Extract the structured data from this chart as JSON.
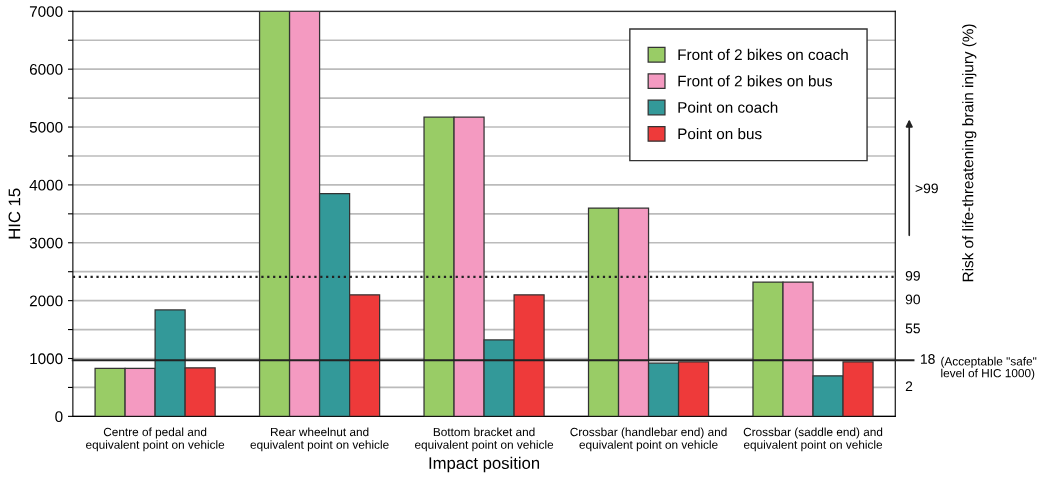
{
  "chart_data": {
    "type": "bar",
    "xlabel": "Impact position",
    "ylabel": "HIC 15",
    "y2label": "Risk of life-threatening brain injury (%)",
    "categories": [
      "Centre of pedal and\nequivalent point on vehicle",
      "Rear wheelnut and\nequivalent point on vehicle",
      "Bottom bracket and\nequivalent point on vehicle",
      "Crossbar (handlebar end) and\nequivalent point on vehicle",
      "Crossbar (saddle end) and\nequivalent point on vehicle"
    ],
    "series": [
      {
        "name": "Front of 2 bikes on coach",
        "color": "#99cc66",
        "values": [
          830,
          7000,
          5170,
          3600,
          2320
        ]
      },
      {
        "name": "Front of 2 bikes on bus",
        "color": "#f49ac1",
        "values": [
          830,
          7000,
          5170,
          3600,
          2320
        ]
      },
      {
        "name": "Point on coach",
        "color": "#339999",
        "values": [
          1840,
          3850,
          1320,
          920,
          700
        ]
      },
      {
        "name": "Point on bus",
        "color": "#ee3a3a",
        "values": [
          840,
          2100,
          2100,
          940,
          940
        ]
      }
    ],
    "ylim": [
      0,
      7000
    ],
    "yticks": [
      0,
      {
        "value": 500,
        "label": null
      },
      1000,
      {
        "value": 1500,
        "label": null
      },
      2000,
      {
        "value": 2500,
        "label": null
      },
      3000,
      {
        "value": 3500,
        "label": null
      },
      4000,
      {
        "value": 4500,
        "label": null
      },
      5000,
      {
        "value": 5500,
        "label": null
      },
      6000,
      {
        "value": 6500,
        "label": null
      },
      7000
    ],
    "ref_lines": [
      {
        "axis": "y",
        "value": 2410,
        "color": "#222222",
        "line_style": "dotted"
      },
      {
        "axis": "y",
        "value": 970,
        "color": "#222222",
        "line_style": "solid"
      }
    ],
    "annotations": [
      "99",
      "90",
      "55",
      "18",
      "(Acceptable \"safe\"\nlevel of HIC 1000)",
      "2",
      ">99"
    ],
    "grid": "y",
    "legend": "top right"
  }
}
